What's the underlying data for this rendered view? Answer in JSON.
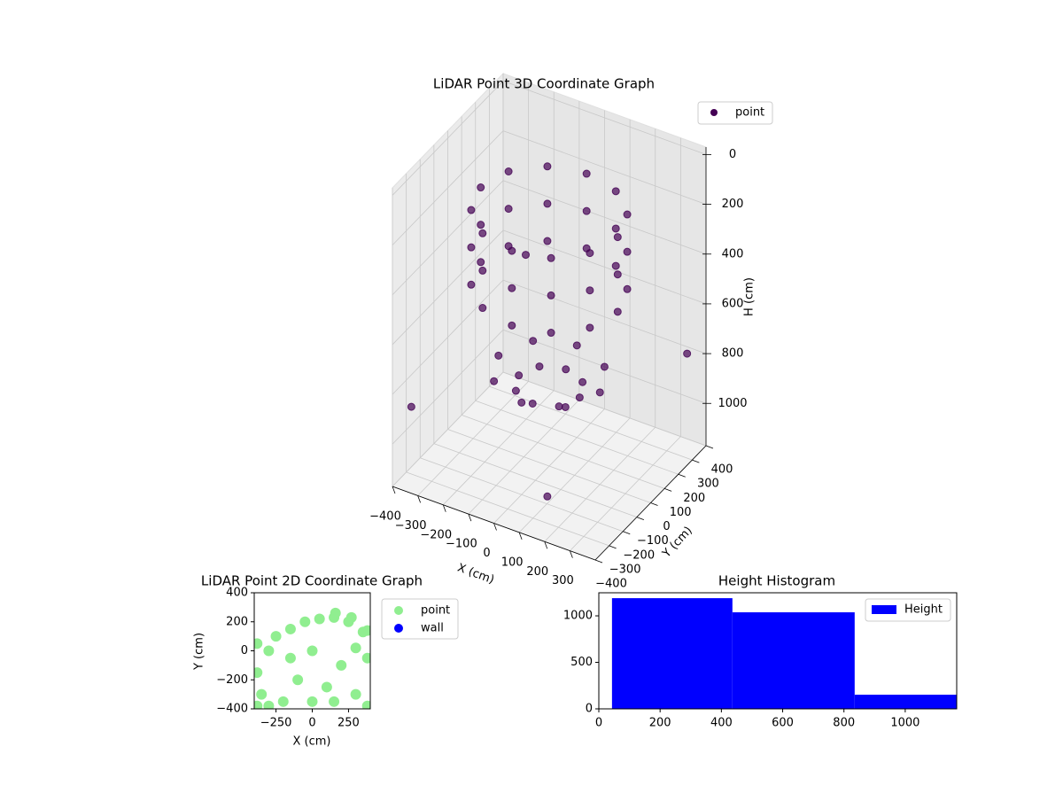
{
  "chart_data": [
    {
      "type": "scatter3d",
      "title": "LiDAR Point 3D Coordinate Graph",
      "xlabel": "X (cm)",
      "ylabel": "Y (cm)",
      "zlabel": "H (cm)",
      "xlim": [
        -400,
        400
      ],
      "ylim": [
        -400,
        400
      ],
      "zlim": [
        -30,
        1170
      ],
      "z_inverted": true,
      "xticks": [
        {
          "value": -400,
          "label": "−400"
        },
        {
          "value": -300,
          "label": "−300"
        },
        {
          "value": -200,
          "label": "−200"
        },
        {
          "value": -100,
          "label": "−100"
        },
        0,
        100,
        200,
        300
      ],
      "yticks": [
        {
          "value": -400,
          "label": "−400"
        },
        {
          "value": -300,
          "label": "−300"
        },
        {
          "value": -200,
          "label": "−200"
        },
        {
          "value": -100,
          "label": "−100"
        },
        0,
        100,
        200,
        300,
        400
      ],
      "zticks": [
        0,
        200,
        400,
        600,
        800,
        1000
      ],
      "grid": true,
      "legend": "upper right",
      "series": [
        {
          "name": "point",
          "color": "#440154",
          "x": [
            270,
            234,
            135,
            0,
            -135,
            -234,
            -270,
            -234,
            -135,
            0,
            135,
            234,
            270,
            234,
            135,
            0,
            -135,
            -234,
            -270,
            -234,
            -135,
            0,
            135,
            234,
            270,
            234,
            135,
            0,
            -135,
            -234,
            -270,
            -234,
            -135,
            0,
            135,
            234,
            120,
            85,
            0,
            -85,
            -120,
            -85,
            0,
            85,
            200,
            141,
            0,
            -141,
            -200,
            -141,
            0,
            141,
            -380,
            380,
            -300,
            200
          ],
          "y": [
            0,
            135,
            234,
            270,
            234,
            135,
            0,
            -135,
            -234,
            -270,
            -234,
            -135,
            0,
            135,
            234,
            270,
            234,
            135,
            0,
            -135,
            -234,
            -270,
            -234,
            -135,
            0,
            135,
            234,
            270,
            234,
            135,
            0,
            -135,
            -234,
            -270,
            -234,
            -135,
            0,
            85,
            120,
            85,
            0,
            -85,
            -120,
            -85,
            0,
            141,
            200,
            141,
            0,
            -141,
            -200,
            -141,
            -300,
            300,
            380,
            -380
          ],
          "z": [
            150,
            150,
            150,
            150,
            150,
            150,
            150,
            150,
            150,
            150,
            150,
            150,
            300,
            300,
            300,
            300,
            300,
            300,
            300,
            300,
            300,
            300,
            300,
            300,
            450,
            450,
            450,
            450,
            450,
            450,
            450,
            450,
            450,
            450,
            450,
            450,
            850,
            850,
            850,
            850,
            850,
            850,
            850,
            850,
            800,
            800,
            800,
            800,
            800,
            800,
            800,
            800,
            900,
            750,
            650,
            1000
          ]
        }
      ]
    },
    {
      "type": "scatter",
      "title": "LiDAR Point 2D Coordinate Graph",
      "xlabel": "X (cm)",
      "ylabel": "Y (cm)",
      "xlim": [
        -400,
        400
      ],
      "ylim": [
        -400,
        400
      ],
      "xticks": [
        {
          "value": -250,
          "label": "−250"
        },
        0,
        250
      ],
      "yticks": [
        {
          "value": -400,
          "label": "−400"
        },
        {
          "value": -200,
          "label": "−200"
        },
        0,
        200,
        400
      ],
      "legend": "outside right",
      "series": [
        {
          "name": "point",
          "color": "#90ee90",
          "x": [
            -350,
            -380,
            -300,
            -250,
            -150,
            -50,
            50,
            150,
            250,
            350,
            300,
            200,
            100,
            0,
            -100,
            -200,
            -300,
            380,
            -380,
            0,
            150,
            300,
            -150,
            380,
            270,
            160,
            -380,
            380
          ],
          "y": [
            -300,
            -150,
            0,
            100,
            150,
            200,
            220,
            230,
            200,
            130,
            20,
            -100,
            -250,
            -350,
            -200,
            -350,
            -380,
            -50,
            50,
            0,
            -350,
            -300,
            -50,
            140,
            230,
            260,
            -380,
            -380
          ]
        },
        {
          "name": "wall",
          "color": "#0000ff",
          "x": [],
          "y": []
        }
      ]
    },
    {
      "type": "histogram",
      "title": "Height Histogram",
      "xlim": [
        0,
        1168
      ],
      "ylim": [
        0,
        1248
      ],
      "xticks": [
        0,
        200,
        400,
        600,
        800,
        1000
      ],
      "yticks": [
        0,
        500,
        1000
      ],
      "legend": "upper right",
      "bins": [
        43,
        436,
        835,
        1168
      ],
      "series": [
        {
          "name": "Height",
          "color": "#0000ff",
          "values": [
            1190,
            1038,
            152
          ]
        }
      ]
    }
  ]
}
